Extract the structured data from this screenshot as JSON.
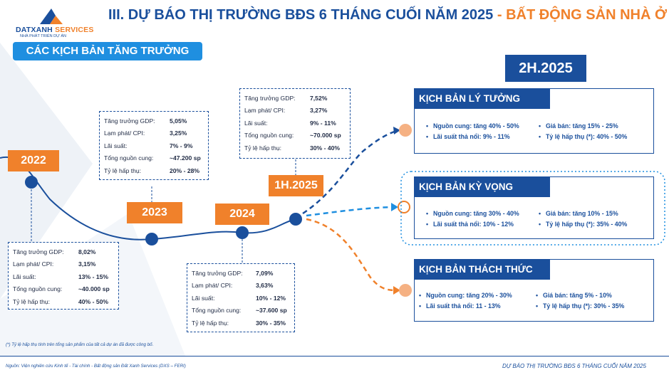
{
  "header": {
    "logo_brand_a": "DATXANH",
    "logo_brand_b": " SERVICES",
    "logo_tagline": "NHÀ PHÁT TRIỂN DỰ ÁN",
    "title_main": "III. DỰ BÁO THỊ TRƯỜNG BĐS 6 THÁNG CUỐI NĂM 2025 ",
    "title_sep": "- ",
    "title_highlight": "BẤT ĐỘNG SẢN NHÀ Ở"
  },
  "section_tab": "CÁC KỊCH BẢN TĂNG TRƯỞNG",
  "periods": [
    {
      "label": "2022",
      "rows": [
        {
          "k": "Tăng trưởng GDP:",
          "v": "8,02%"
        },
        {
          "k": "Lạm phát/ CPI:",
          "v": "3,15%"
        },
        {
          "k": "Lãi suất:",
          "v": "13% - 15%"
        },
        {
          "k": "Tổng nguồn cung:",
          "v": "~40.000 sp"
        },
        {
          "k": "Tỷ lệ hấp thụ:",
          "v": "40% - 50%"
        }
      ]
    },
    {
      "label": "2023",
      "rows": [
        {
          "k": "Tăng trưởng GDP:",
          "v": "5,05%"
        },
        {
          "k": "Lạm phát/ CPI:",
          "v": "3,25%"
        },
        {
          "k": "Lãi suất:",
          "v": "7% - 9%"
        },
        {
          "k": "Tổng nguồn cung:",
          "v": "~47.200 sp"
        },
        {
          "k": "Tỷ lệ hấp thụ:",
          "v": "20% - 28%"
        }
      ]
    },
    {
      "label": "2024",
      "rows": [
        {
          "k": "Tăng trưởng GDP:",
          "v": "7,09%"
        },
        {
          "k": "Lạm phát/ CPI:",
          "v": "3,63%"
        },
        {
          "k": "Lãi suất:",
          "v": "10% - 12%"
        },
        {
          "k": "Tổng nguồn cung:",
          "v": "~37.600 sp"
        },
        {
          "k": "Tỷ lệ hấp thụ:",
          "v": "30% - 35%"
        }
      ]
    },
    {
      "label": "1H.2025",
      "rows": [
        {
          "k": "Tăng trưởng GDP:",
          "v": "7,52%"
        },
        {
          "k": "Lạm phát/ CPI:",
          "v": "3,27%"
        },
        {
          "k": "Lãi suất:",
          "v": "9% - 11%"
        },
        {
          "k": "Tổng nguồn cung:",
          "v": "~70.000 sp"
        },
        {
          "k": "Tỷ lệ hấp thụ:",
          "v": "30% - 40%"
        }
      ]
    }
  ],
  "forecast_label": "2H.2025",
  "scenarios": [
    {
      "title": "KỊCH BẢN LÝ TƯỞNG",
      "items": [
        "Nguồn cung: tăng 40% - 50%",
        "Giá bán: tăng 15% - 25%",
        "Lãi suất thả nổi: 9% - 11%",
        "Tỷ lệ hấp thụ (*): 40% - 50%"
      ]
    },
    {
      "title": "KỊCH BẢN KỲ VỌNG",
      "items": [
        "Nguồn cung: tăng 30% - 40%",
        "Giá bán: tăng 10% - 15%",
        "Lãi suất thả nổi: 10% - 12%",
        "Tỷ lệ hấp thụ (*): 35% - 40%"
      ]
    },
    {
      "title": "KỊCH BẢN THÁCH THỨC",
      "items": [
        "Nguồn cung: tăng 20% - 30%",
        "Giá bán: tăng 5% - 10%",
        "Lãi suất thả nổi: 11 - 13%",
        "Tỷ lệ hấp thụ (*): 30% - 35%"
      ]
    }
  ],
  "colors": {
    "primary": "#1a4f9c",
    "accent": "#f0812b",
    "light_blue": "#1f8fe0",
    "dot_orange": "#f5b183"
  },
  "footnote": "(*) Tỷ lệ hấp thụ tính trên tổng sản phẩm của tất cả dự án đã được công bố.",
  "source": "Nguồn: Viện nghiên cứu Kinh tế - Tài chính - Bất động sản Đất Xanh Services (DXS – FERI)",
  "report_name": "DỰ BÁO THỊ TRƯỜNG BĐS 6 THÁNG CUỐI NĂM 2025"
}
